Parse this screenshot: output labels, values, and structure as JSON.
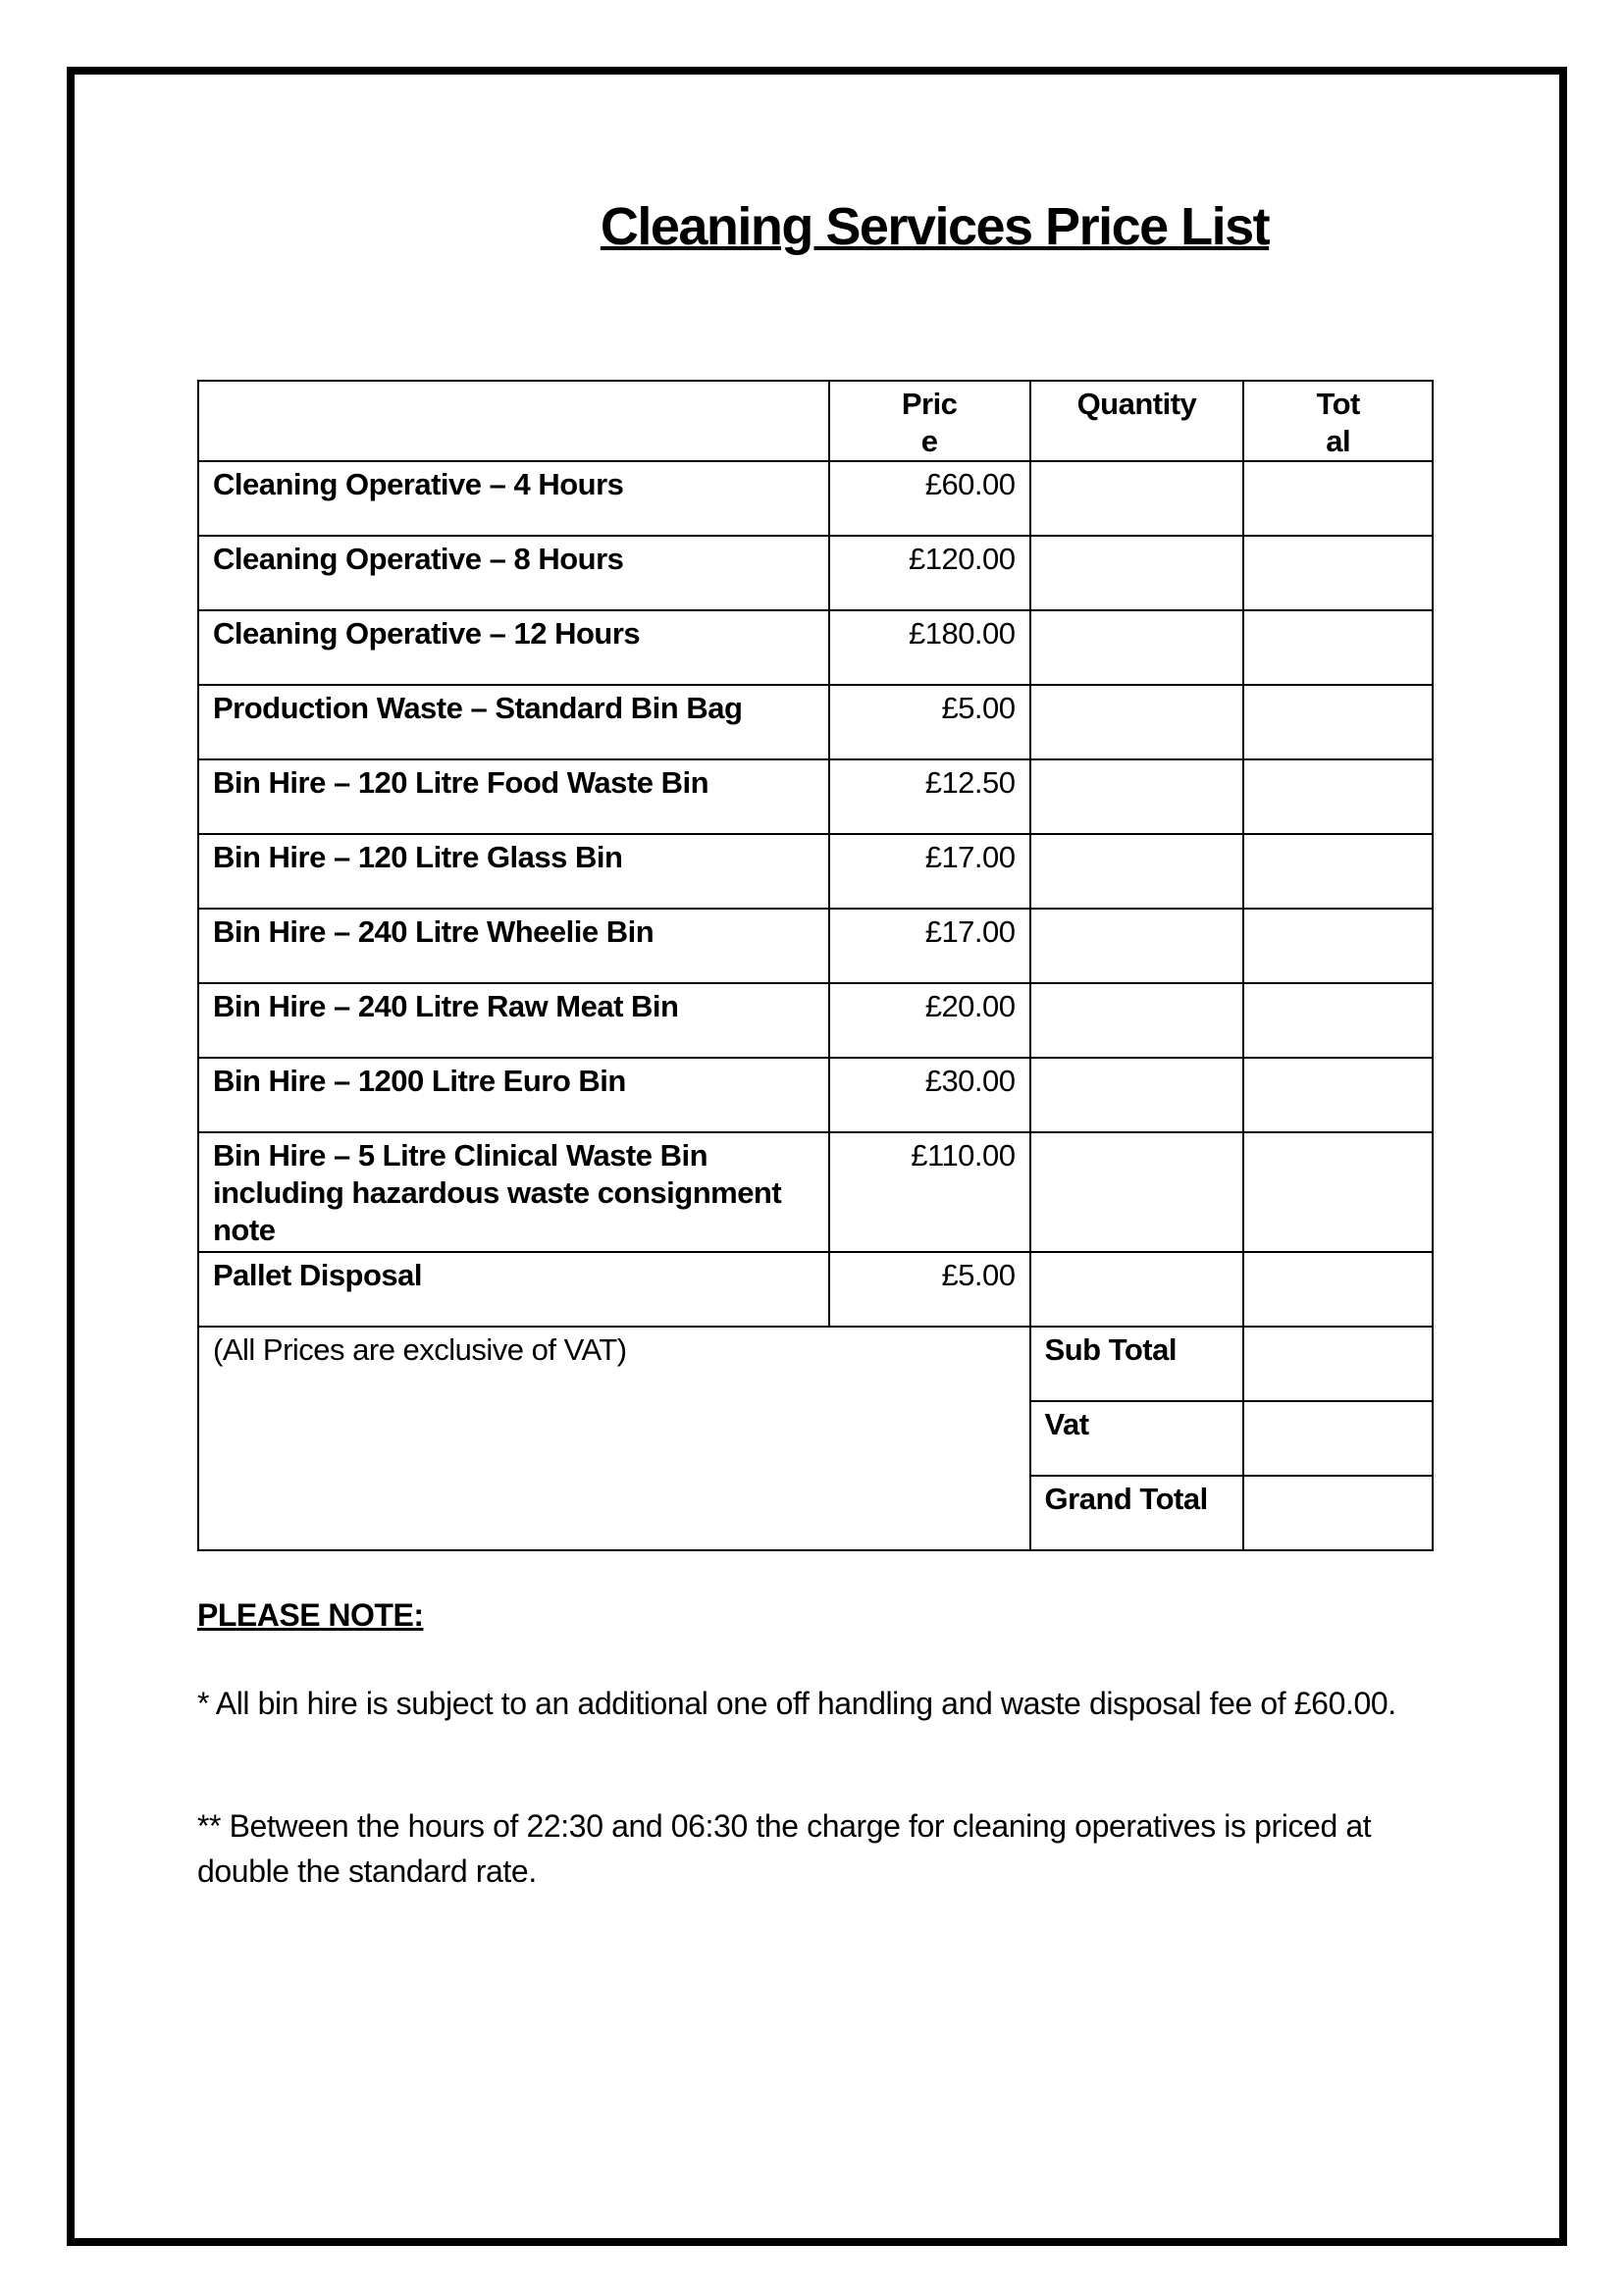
{
  "title": "Cleaning Services Price List",
  "table": {
    "headers": [
      "",
      "Pric\ne",
      "Quantity",
      "Tot\nal"
    ],
    "rows": [
      {
        "item": "Cleaning Operative – 4 Hours",
        "price": "£60.00"
      },
      {
        "item": "Cleaning Operative – 8 Hours",
        "price": "£120.00"
      },
      {
        "item": "Cleaning Operative – 12 Hours",
        "price": "£180.00"
      },
      {
        "item": "Production Waste – Standard Bin Bag",
        "price": "£5.00"
      },
      {
        "item": "Bin Hire – 120 Litre Food Waste Bin",
        "price": "£12.50"
      },
      {
        "item": "Bin Hire – 120 Litre Glass Bin",
        "price": "£17.00"
      },
      {
        "item": "Bin Hire – 240 Litre Wheelie Bin",
        "price": "£17.00"
      },
      {
        "item": "Bin Hire – 240 Litre Raw Meat Bin",
        "price": "£20.00"
      },
      {
        "item": "Bin Hire – 1200 Litre Euro Bin",
        "price": "£30.00"
      },
      {
        "item": "Bin Hire – 5 Litre Clinical Waste Bin including hazardous waste consignment note",
        "price": "£110.00"
      },
      {
        "item": "Pallet Disposal",
        "price": "£5.00"
      }
    ],
    "vat_note": "(All Prices are exclusive of VAT)",
    "sub_total": "Sub Total",
    "vat": "Vat",
    "grand_total": "Grand Total"
  },
  "notes": {
    "heading": "PLEASE NOTE:",
    "note1": "* All bin hire is subject to an additional one off handling and waste disposal fee of £60.00.",
    "note2": "** Between the hours of 22:30 and 06:30 the charge for cleaning operatives is priced at double the standard rate."
  }
}
